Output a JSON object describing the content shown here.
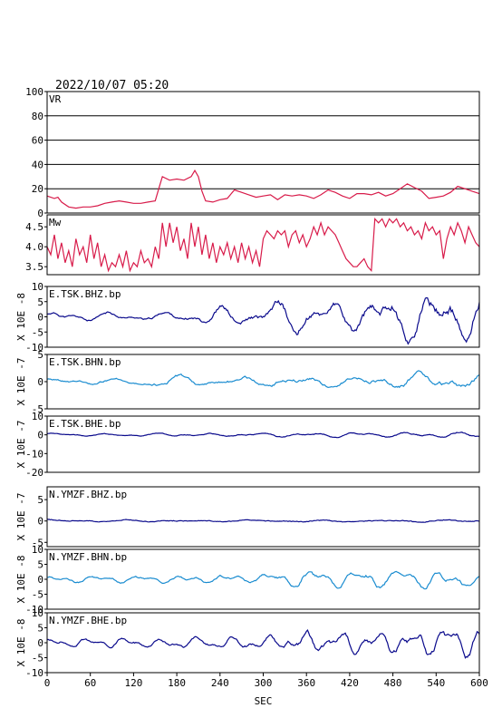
{
  "title": "2022/10/07 05:20",
  "chart_data": {
    "type": "line",
    "xlabel": "SEC",
    "xlim": [
      0,
      600
    ],
    "xticks": [
      "0",
      "60",
      "120",
      "180",
      "240",
      "300",
      "360",
      "420",
      "480",
      "540",
      "600"
    ],
    "colors": {
      "vr": "#d81b4a",
      "mw": "#d81b4a",
      "navy": "#0a0a8c",
      "cyan": "#1a8cd0",
      "grid": "#000000"
    },
    "panels": [
      {
        "id": "vr",
        "label": "VR",
        "ylabel": "",
        "ylim": [
          0,
          100
        ],
        "yticks": [
          "0",
          "20",
          "40",
          "60",
          "80",
          "100"
        ],
        "grid": true,
        "color": "#d81b4a",
        "series": {
          "name": "",
          "x": [
            0,
            10,
            15,
            20,
            30,
            40,
            50,
            60,
            70,
            80,
            90,
            100,
            110,
            120,
            130,
            140,
            150,
            155,
            160,
            170,
            180,
            190,
            200,
            205,
            210,
            215,
            220,
            230,
            240,
            250,
            260,
            270,
            280,
            290,
            300,
            310,
            320,
            330,
            340,
            350,
            360,
            370,
            380,
            390,
            400,
            410,
            420,
            430,
            440,
            450,
            460,
            470,
            480,
            490,
            500,
            510,
            520,
            530,
            540,
            550,
            560,
            570,
            580,
            590,
            600
          ],
          "y": [
            14,
            12,
            13,
            9,
            5,
            4,
            5,
            5,
            6,
            8,
            9,
            10,
            9,
            8,
            8,
            9,
            10,
            20,
            30,
            27,
            28,
            27,
            30,
            35,
            30,
            18,
            10,
            9,
            11,
            12,
            19,
            17,
            15,
            13,
            14,
            15,
            11,
            15,
            14,
            15,
            14,
            12,
            15,
            19,
            17,
            14,
            12,
            16,
            16,
            15,
            17,
            14,
            16,
            20,
            24,
            21,
            18,
            12,
            13,
            14,
            17,
            22,
            20,
            18,
            16
          ]
        }
      },
      {
        "id": "mw",
        "label": "Mw",
        "ylabel": "",
        "ylim": [
          3.3,
          4.8
        ],
        "yticks": [
          "3.5",
          "4.0",
          "4.5"
        ],
        "grid": false,
        "color": "#d81b4a",
        "series": {
          "name": "",
          "x": [
            0,
            5,
            10,
            15,
            20,
            25,
            30,
            35,
            40,
            45,
            50,
            55,
            60,
            65,
            70,
            75,
            80,
            85,
            90,
            95,
            100,
            105,
            110,
            115,
            120,
            125,
            130,
            135,
            140,
            145,
            150,
            155,
            160,
            165,
            170,
            175,
            180,
            185,
            190,
            195,
            200,
            205,
            210,
            215,
            220,
            225,
            230,
            235,
            240,
            245,
            250,
            255,
            260,
            265,
            270,
            275,
            280,
            285,
            290,
            295,
            300,
            305,
            310,
            315,
            320,
            325,
            330,
            335,
            340,
            345,
            350,
            355,
            360,
            365,
            370,
            375,
            380,
            385,
            390,
            395,
            400,
            405,
            410,
            415,
            420,
            425,
            430,
            435,
            440,
            445,
            450,
            455,
            460,
            465,
            470,
            475,
            480,
            485,
            490,
            495,
            500,
            505,
            510,
            515,
            520,
            525,
            530,
            535,
            540,
            545,
            550,
            555,
            560,
            565,
            570,
            575,
            580,
            585,
            590,
            595,
            600
          ],
          "y": [
            4.0,
            3.8,
            4.3,
            3.7,
            4.1,
            3.6,
            3.9,
            3.5,
            4.2,
            3.8,
            4.0,
            3.6,
            4.3,
            3.7,
            4.1,
            3.5,
            3.8,
            3.4,
            3.6,
            3.5,
            3.8,
            3.5,
            3.9,
            3.4,
            3.6,
            3.5,
            3.9,
            3.6,
            3.7,
            3.5,
            4.0,
            3.7,
            4.6,
            4.0,
            4.6,
            4.1,
            4.5,
            3.9,
            4.2,
            3.7,
            4.6,
            4.0,
            4.5,
            3.8,
            4.3,
            3.7,
            4.1,
            3.6,
            4.0,
            3.8,
            4.1,
            3.7,
            4.0,
            3.6,
            4.1,
            3.7,
            4.0,
            3.6,
            3.9,
            3.5,
            4.2,
            4.4,
            4.3,
            4.2,
            4.4,
            4.3,
            4.4,
            4.0,
            4.3,
            4.4,
            4.1,
            4.3,
            4.0,
            4.2,
            4.5,
            4.3,
            4.6,
            4.3,
            4.5,
            4.4,
            4.3,
            4.1,
            3.9,
            3.7,
            3.6,
            3.5,
            3.5,
            3.6,
            3.7,
            3.5,
            3.4,
            4.7,
            4.6,
            4.7,
            4.5,
            4.7,
            4.6,
            4.7,
            4.5,
            4.6,
            4.4,
            4.5,
            4.3,
            4.4,
            4.2,
            4.6,
            4.4,
            4.5,
            4.3,
            4.4,
            3.7,
            4.2,
            4.5,
            4.3,
            4.6,
            4.4,
            4.1,
            4.5,
            4.3,
            4.1,
            4.0
          ]
        }
      },
      {
        "id": "tsk-bhz",
        "label": "E.TSK.BHZ.bp",
        "ylabel": "X 10E -8",
        "ylim": [
          -10,
          10
        ],
        "yticks": [
          "-10",
          "-5",
          "0",
          "5",
          "10"
        ],
        "grid": false,
        "color": "#0a0a8c",
        "waves": [
          [
            0.8,
            75,
            0.3
          ],
          [
            0.5,
            40,
            1.1
          ]
        ],
        "envelope": [
          [
            0,
            1.2
          ],
          [
            60,
            1.2
          ],
          [
            120,
            0.9
          ],
          [
            180,
            1.2
          ],
          [
            240,
            2.6
          ],
          [
            300,
            2.5
          ],
          [
            340,
            5.2
          ],
          [
            380,
            3.6
          ],
          [
            420,
            4.2
          ],
          [
            480,
            5.6
          ],
          [
            540,
            6.0
          ],
          [
            600,
            7.0
          ]
        ],
        "seed": 11
      },
      {
        "id": "tsk-bhn",
        "label": "E.TSK.BHN.bp",
        "ylabel": "X 10E -7",
        "ylim": [
          -5,
          5
        ],
        "yticks": [
          "-5",
          "0",
          "5"
        ],
        "grid": false,
        "color": "#1a8cd0",
        "waves": [
          [
            0.7,
            85,
            0.7
          ],
          [
            0.5,
            47,
            2.0
          ]
        ],
        "envelope": [
          [
            0,
            0.5
          ],
          [
            100,
            0.4
          ],
          [
            160,
            0.9
          ],
          [
            300,
            0.7
          ],
          [
            330,
            1.0
          ],
          [
            400,
            0.9
          ],
          [
            480,
            1.1
          ],
          [
            560,
            1.5
          ],
          [
            600,
            1.2
          ]
        ],
        "seed": 23
      },
      {
        "id": "tsk-bhe",
        "label": "E.TSK.BHE.bp",
        "ylabel": "X 10E -7",
        "ylim": [
          -20,
          10
        ],
        "yticks": [
          "-20",
          "-10",
          "0",
          "10"
        ],
        "grid": false,
        "color": "#0a0a8c",
        "waves": [
          [
            0.7,
            70,
            0.4
          ],
          [
            0.5,
            38,
            1.4
          ]
        ],
        "envelope": [
          [
            0,
            0.6
          ],
          [
            200,
            0.8
          ],
          [
            400,
            1.0
          ],
          [
            600,
            1.3
          ]
        ],
        "seed": 37
      },
      {
        "id": "ymzf-bhz",
        "label": "N.YMZF.BHZ.bp",
        "ylabel": "X 10E -7",
        "ylim": [
          -6,
          8
        ],
        "yticks": [
          "-5",
          "0",
          "5"
        ],
        "grid": false,
        "color": "#0a0a8c",
        "waves": [
          [
            0.7,
            90,
            0.2
          ],
          [
            0.5,
            55,
            1.7
          ]
        ],
        "envelope": [
          [
            0,
            0.5
          ],
          [
            20,
            0.25
          ],
          [
            200,
            0.15
          ],
          [
            400,
            0.2
          ],
          [
            600,
            0.3
          ]
        ],
        "seed": 41
      },
      {
        "id": "ymzf-bhn",
        "label": "N.YMZF.BHN.bp",
        "ylabel": "X 10E -8",
        "ylim": [
          -10,
          10
        ],
        "yticks": [
          "-10",
          "-5",
          "0",
          "5",
          "10"
        ],
        "grid": false,
        "color": "#1a8cd0",
        "waves": [
          [
            0.8,
            60,
            0.5
          ],
          [
            0.5,
            30,
            1.8
          ]
        ],
        "envelope": [
          [
            0,
            0.8
          ],
          [
            200,
            1.0
          ],
          [
            300,
            1.3
          ],
          [
            350,
            2.5
          ],
          [
            420,
            2.3
          ],
          [
            500,
            2.0
          ],
          [
            560,
            2.3
          ],
          [
            600,
            1.6
          ]
        ],
        "seed": 53
      },
      {
        "id": "ymzf-bhe",
        "label": "N.YMZF.BHE.bp",
        "ylabel": "X 10E -8",
        "ylim": [
          -10,
          10
        ],
        "yticks": [
          "-10",
          "-5",
          "0",
          "5",
          "10"
        ],
        "grid": false,
        "color": "#0a0a8c",
        "waves": [
          [
            0.8,
            50,
            0.6
          ],
          [
            0.5,
            26,
            2.1
          ]
        ],
        "envelope": [
          [
            0,
            1.0
          ],
          [
            200,
            1.4
          ],
          [
            300,
            1.6
          ],
          [
            360,
            3.0
          ],
          [
            440,
            2.6
          ],
          [
            520,
            3.2
          ],
          [
            600,
            3.6
          ]
        ],
        "seed": 67
      }
    ]
  }
}
